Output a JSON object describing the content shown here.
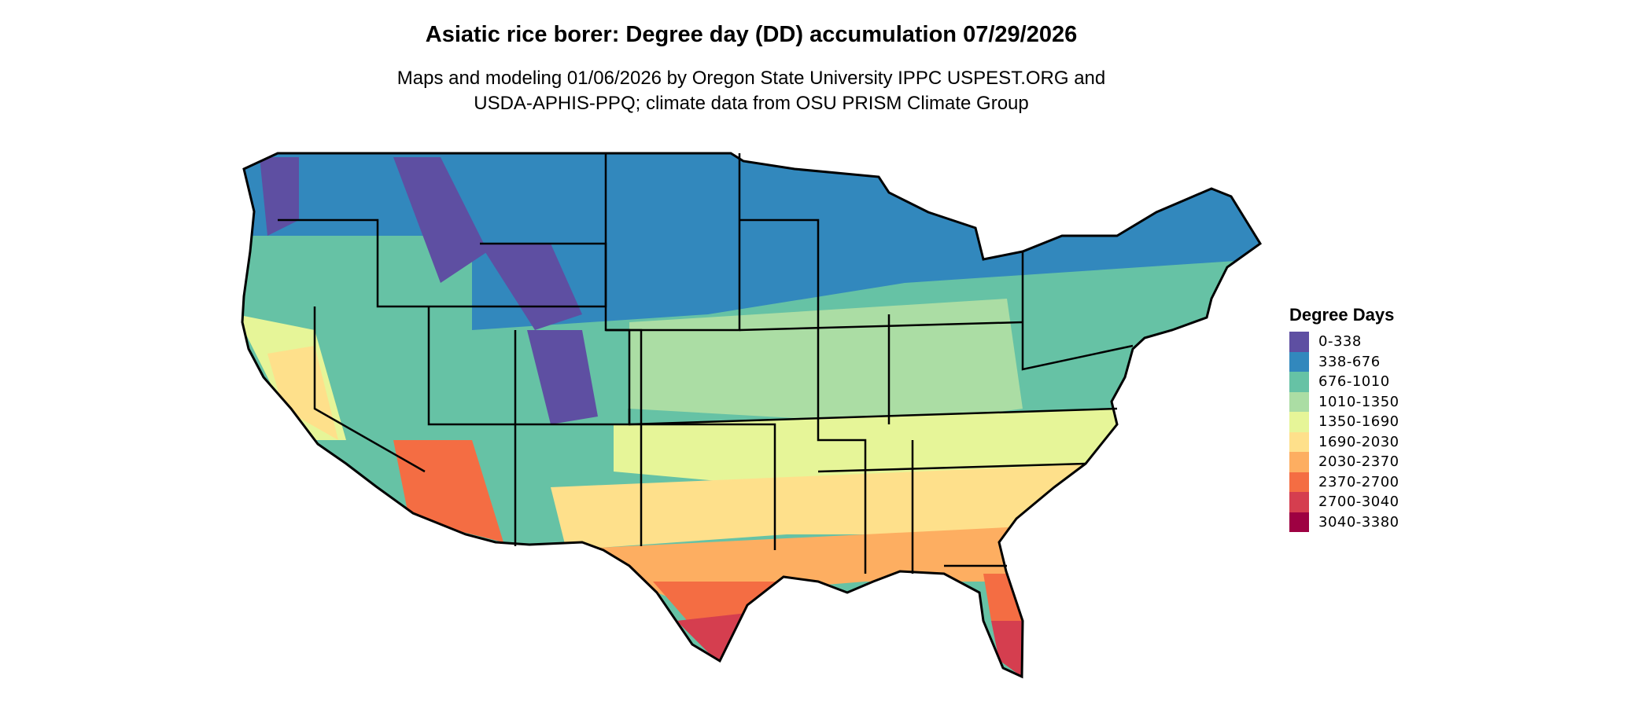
{
  "title": "Asiatic rice borer: Degree day (DD) accumulation 07/29/2026",
  "subtitle_line1": "Maps and modeling 01/06/2026 by Oregon State University IPPC USPEST.ORG and",
  "subtitle_line2": "USDA-APHIS-PPQ; climate data from OSU PRISM Climate Group",
  "legend": {
    "title": "Degree Days",
    "items": [
      {
        "label": "0-338",
        "color": "#5E4FA2"
      },
      {
        "label": "338-676",
        "color": "#3288BD"
      },
      {
        "label": "676-1010",
        "color": "#66C2A5"
      },
      {
        "label": "1010-1350",
        "color": "#ABDDA4"
      },
      {
        "label": "1350-1690",
        "color": "#E6F598"
      },
      {
        "label": "1690-2030",
        "color": "#FEE08B"
      },
      {
        "label": "2030-2370",
        "color": "#FDAE61"
      },
      {
        "label": "2370-2700",
        "color": "#F46D43"
      },
      {
        "label": "2700-3040",
        "color": "#D53E4F"
      },
      {
        "label": "3040-3380",
        "color": "#9E0142"
      }
    ]
  }
}
